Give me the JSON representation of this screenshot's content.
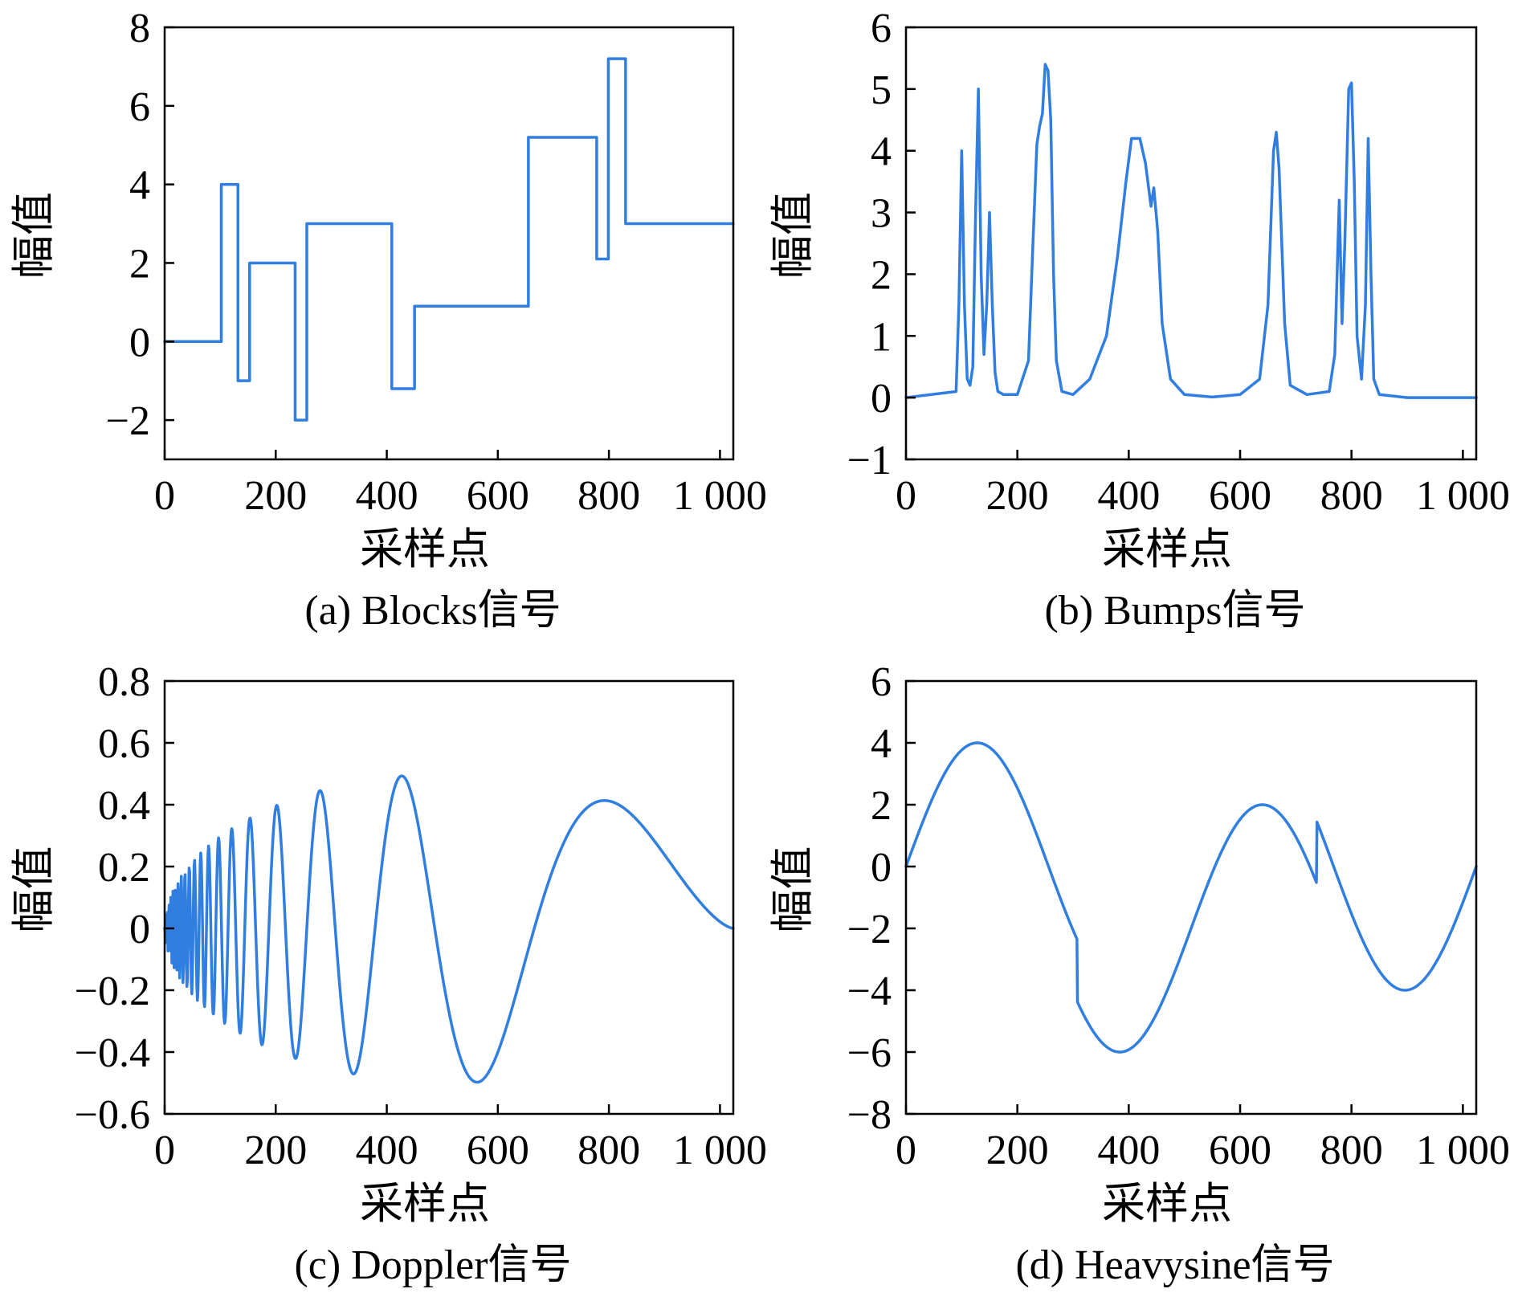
{
  "colors": {
    "line": "#2f7ee0",
    "axis": "#000000"
  },
  "chart_data": [
    {
      "type": "line",
      "caption": "(a) Blocks信号",
      "xlabel": "采样点",
      "ylabel": "幅值",
      "xlim": [
        0,
        1024
      ],
      "ylim": [
        -3,
        8
      ],
      "xticks": [
        0,
        200,
        400,
        600,
        800,
        1000
      ],
      "xtick_labels": [
        "0",
        "200",
        "400",
        "600",
        "800",
        "1 000"
      ],
      "yticks": [
        -2,
        0,
        2,
        4,
        6,
        8
      ],
      "ytick_labels": [
        "−2",
        "0",
        "2",
        "4",
        "6",
        "8"
      ],
      "series": [
        {
          "name": "Blocks",
          "x": [
            0,
            102,
            102,
            132,
            132,
            153,
            153,
            235,
            235,
            256,
            256,
            409,
            409,
            450,
            450,
            655,
            655,
            778,
            778,
            799,
            799,
            830,
            830,
            1024
          ],
          "y": [
            0,
            0,
            4,
            4,
            -1,
            -1,
            2,
            2,
            -2,
            -2,
            3,
            3,
            -1.2,
            -1.2,
            0.9,
            0.9,
            5.2,
            5.2,
            2.1,
            2.1,
            7.2,
            7.2,
            3,
            3
          ]
        }
      ]
    },
    {
      "type": "line",
      "caption": "(b) Bumps信号",
      "xlabel": "采样点",
      "ylabel": "幅值",
      "xlim": [
        0,
        1024
      ],
      "ylim": [
        -1,
        6
      ],
      "xticks": [
        0,
        200,
        400,
        600,
        800,
        1000
      ],
      "xtick_labels": [
        "0",
        "200",
        "400",
        "600",
        "800",
        "1 000"
      ],
      "yticks": [
        -1,
        0,
        1,
        2,
        3,
        4,
        5,
        6
      ],
      "ytick_labels": [
        "−1",
        "0",
        "1",
        "2",
        "3",
        "4",
        "5",
        "6"
      ],
      "series": [
        {
          "name": "Bumps",
          "x": [
            0,
            90,
            95,
            100,
            105,
            110,
            115,
            120,
            125,
            130,
            135,
            140,
            145,
            150,
            155,
            160,
            165,
            175,
            200,
            220,
            228,
            235,
            240,
            245,
            250,
            255,
            260,
            265,
            270,
            280,
            300,
            330,
            360,
            380,
            395,
            405,
            420,
            430,
            440,
            445,
            452,
            460,
            475,
            500,
            550,
            600,
            635,
            650,
            660,
            665,
            670,
            680,
            690,
            720,
            760,
            770,
            778,
            783,
            788,
            795,
            800,
            805,
            810,
            818,
            825,
            830,
            835,
            840,
            850,
            900,
            1024
          ],
          "y": [
            0,
            0.1,
            1.5,
            4.0,
            1.5,
            0.3,
            0.2,
            0.5,
            3.0,
            5.0,
            2.0,
            0.7,
            1.5,
            3.0,
            1.5,
            0.4,
            0.1,
            0.05,
            0.05,
            0.6,
            2.5,
            4.1,
            4.4,
            4.6,
            5.4,
            5.3,
            4.5,
            2.0,
            0.6,
            0.1,
            0.05,
            0.3,
            1.0,
            2.3,
            3.5,
            4.2,
            4.2,
            3.8,
            3.1,
            3.4,
            2.7,
            1.2,
            0.3,
            0.05,
            0.01,
            0.05,
            0.3,
            1.5,
            4.0,
            4.3,
            3.7,
            1.2,
            0.2,
            0.05,
            0.1,
            0.7,
            3.2,
            1.2,
            2.5,
            5.0,
            5.1,
            3.5,
            1.0,
            0.3,
            1.5,
            4.2,
            2.0,
            0.3,
            0.05,
            0,
            0
          ]
        }
      ]
    },
    {
      "type": "line",
      "caption": "(c) Doppler信号",
      "xlabel": "采样点",
      "ylabel": "幅值",
      "xlim": [
        0,
        1024
      ],
      "ylim": [
        -0.6,
        0.8
      ],
      "xticks": [
        0,
        200,
        400,
        600,
        800,
        1000
      ],
      "xtick_labels": [
        "0",
        "200",
        "400",
        "600",
        "800",
        "1 000"
      ],
      "yticks": [
        -0.6,
        -0.4,
        -0.2,
        0,
        0.2,
        0.4,
        0.6,
        0.8
      ],
      "ytick_labels": [
        "−0.6",
        "−0.4",
        "−0.2",
        "0",
        "0.2",
        "0.4",
        "0.6",
        "0.8"
      ],
      "series": [
        {
          "name": "Doppler",
          "formula": "sqrt(t(1-t))*sin(2.1*pi/(t+0.05)), t=x/1024",
          "points": 1024
        }
      ]
    },
    {
      "type": "line",
      "caption": "(d) Heavysine信号",
      "xlabel": "采样点",
      "ylabel": "幅值",
      "xlim": [
        0,
        1024
      ],
      "ylim": [
        -8,
        6
      ],
      "xticks": [
        0,
        200,
        400,
        600,
        800,
        1000
      ],
      "xtick_labels": [
        "0",
        "200",
        "400",
        "600",
        "800",
        "1 000"
      ],
      "yticks": [
        -8,
        -6,
        -4,
        -2,
        0,
        2,
        4,
        6
      ],
      "ytick_labels": [
        "−8",
        "−6",
        "−4",
        "−2",
        "0",
        "2",
        "4",
        "6"
      ],
      "series": [
        {
          "name": "Heavysine",
          "formula": "4*sin(4*pi*t) - sign(t-0.3) - sign(0.72-t), t=x/1024",
          "points": 1024
        }
      ]
    }
  ]
}
